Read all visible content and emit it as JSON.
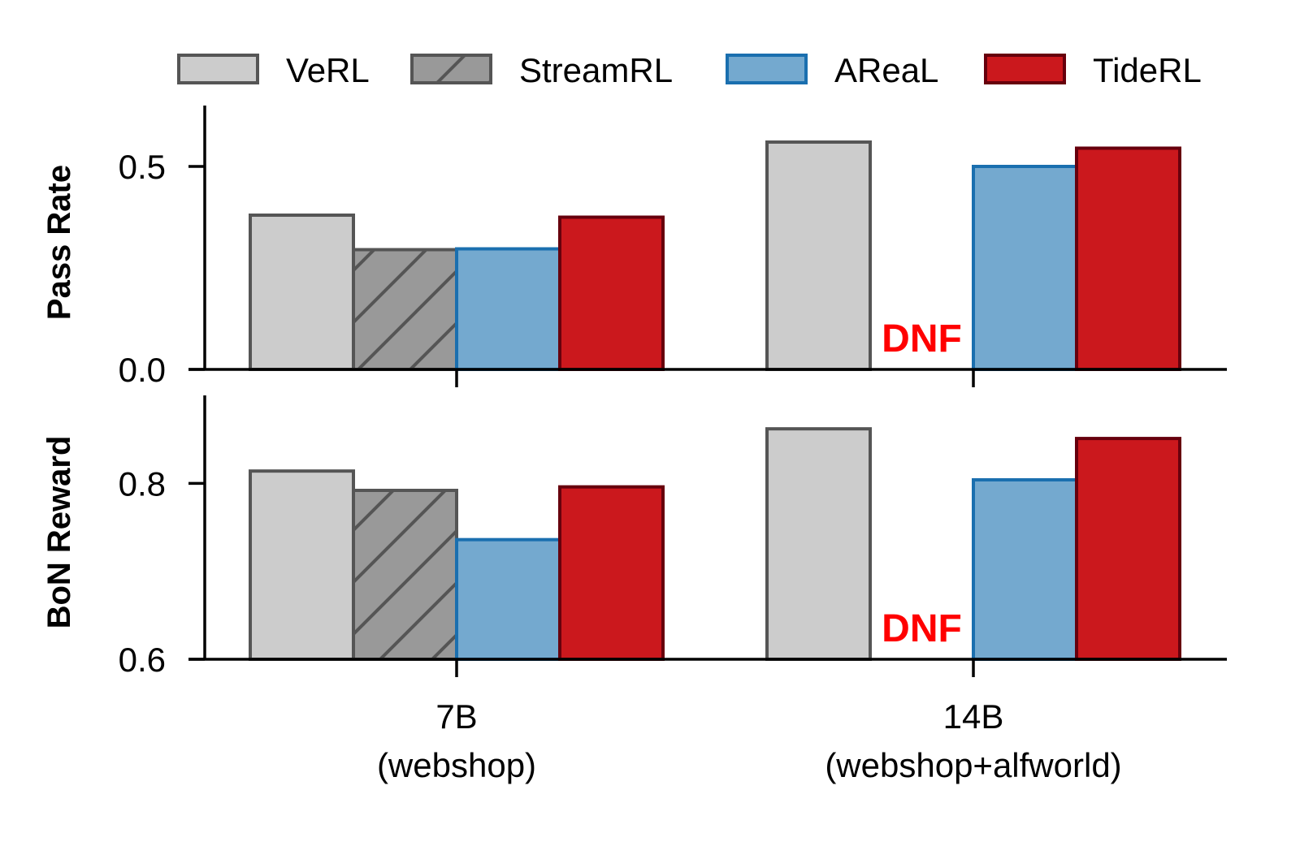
{
  "chart_data": {
    "type": "bar",
    "categories": [
      "7B\n(webshop)",
      "14B\n(webshop+alfworld)"
    ],
    "legend": {
      "placement": "top",
      "entries": [
        "VeRL",
        "StreamRL",
        "AReaL",
        "TideRL"
      ]
    },
    "series_style": [
      {
        "name": "VeRL",
        "fill": "#cccccc",
        "stroke": "#555555",
        "hatch": false
      },
      {
        "name": "StreamRL",
        "fill": "#999999",
        "stroke": "#555555",
        "hatch": true
      },
      {
        "name": "AReaL",
        "fill": "#74a9cf",
        "stroke": "#1a6faf",
        "hatch": false
      },
      {
        "name": "TideRL",
        "fill": "#cb181d",
        "stroke": "#67000d",
        "hatch": false
      }
    ],
    "panels": [
      {
        "ylabel": "Pass Rate",
        "ylim": [
          0.0,
          0.65
        ],
        "yticks": [
          0.0,
          0.5
        ],
        "ytick_labels": [
          "0.0",
          "0.5"
        ],
        "series": [
          {
            "name": "VeRL",
            "values": [
              0.38,
              0.56
            ]
          },
          {
            "name": "StreamRL",
            "values": [
              0.295,
              null
            ]
          },
          {
            "name": "AReaL",
            "values": [
              0.297,
              0.5
            ]
          },
          {
            "name": "TideRL",
            "values": [
              0.375,
              0.545
            ]
          }
        ],
        "annotations": [
          {
            "text": "DNF",
            "category": 1,
            "series": "StreamRL"
          }
        ]
      },
      {
        "ylabel": "BoN Reward",
        "ylim": [
          0.6,
          0.9
        ],
        "yticks": [
          0.6,
          0.8
        ],
        "ytick_labels": [
          "0.6",
          "0.8"
        ],
        "series": [
          {
            "name": "VeRL",
            "values": [
              0.814,
              0.862
            ]
          },
          {
            "name": "StreamRL",
            "values": [
              0.792,
              null
            ]
          },
          {
            "name": "AReaL",
            "values": [
              0.736,
              0.804
            ]
          },
          {
            "name": "TideRL",
            "values": [
              0.796,
              0.851
            ]
          }
        ],
        "annotations": [
          {
            "text": "DNF",
            "category": 1,
            "series": "StreamRL"
          }
        ]
      }
    ],
    "grid": false
  }
}
